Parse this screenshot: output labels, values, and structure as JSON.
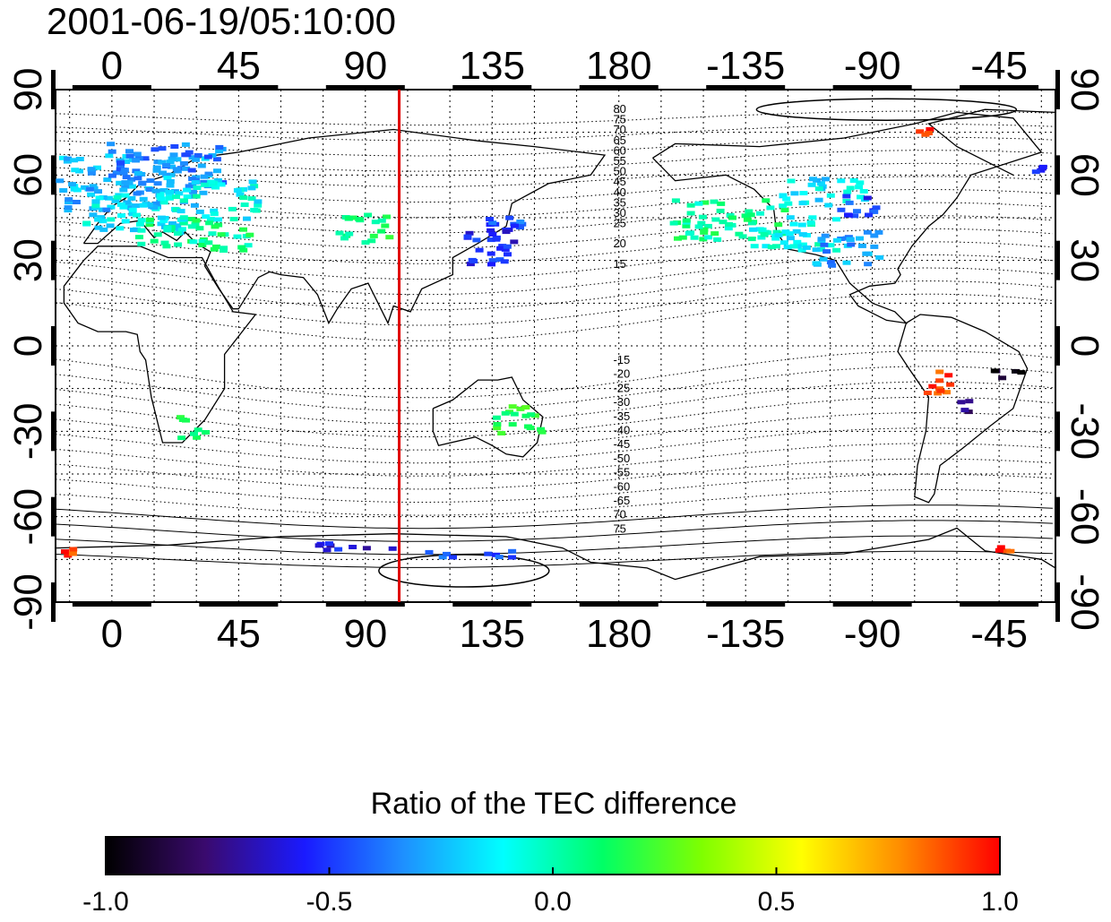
{
  "timestamp": "2001-06-19/05:10:00",
  "x_ticks": [
    0,
    45,
    90,
    135,
    180,
    -135,
    -90,
    -45
  ],
  "y_ticks": [
    90,
    60,
    30,
    0,
    -30,
    -60,
    -90
  ],
  "x_tick_labels": [
    "0",
    "45",
    "90",
    "135",
    "180",
    "-135",
    "-90",
    "-45"
  ],
  "y_tick_labels": [
    "90",
    "60",
    "30",
    "0",
    "-30",
    "-60",
    "-90"
  ],
  "map_extent": {
    "lon_start": -20,
    "lon_end": 335,
    "lat_top": 90,
    "lat_bottom": -90
  },
  "meridian_marker": {
    "lon": 102,
    "color": "#e00000"
  },
  "contour_labels_north": [
    "80",
    "75",
    "70",
    "65",
    "60",
    "55",
    "50",
    "45",
    "40",
    "35",
    "30",
    "25",
    "20",
    "15"
  ],
  "contour_labels_south": [
    "-15",
    "-20",
    "-25",
    "-30",
    "-35",
    "-40",
    "-45",
    "-50",
    "-55",
    "-60",
    "-65",
    "70",
    "75"
  ],
  "colorbar": {
    "title": "Ratio of the TEC difference",
    "min": -1.0,
    "max": 1.0,
    "tick_labels": [
      "-1.0",
      "-0.5",
      "0.0",
      "0.5",
      "1.0"
    ],
    "stops": [
      "#000000",
      "#3a0a6e",
      "#1a1aff",
      "#1e90ff",
      "#00ffff",
      "#00ff66",
      "#7fff00",
      "#ffff00",
      "#ff8c00",
      "#ff0000"
    ]
  },
  "tec_patches": [
    {
      "lon": -5,
      "lat": 58,
      "w": 55,
      "h": 20,
      "v": -0.25
    },
    {
      "lon": 10,
      "lat": 65,
      "w": 40,
      "h": 14,
      "v": -0.35
    },
    {
      "lon": 0,
      "lat": 48,
      "w": 35,
      "h": 15,
      "v": -0.15
    },
    {
      "lon": 20,
      "lat": 40,
      "w": 40,
      "h": 12,
      "v": 0.05
    },
    {
      "lon": 30,
      "lat": 52,
      "w": 30,
      "h": 14,
      "v": -0.1
    },
    {
      "lon": 85,
      "lat": 42,
      "w": 20,
      "h": 10,
      "v": 0.1
    },
    {
      "lon": 130,
      "lat": 35,
      "w": 18,
      "h": 14,
      "v": -0.55
    },
    {
      "lon": 136,
      "lat": 42,
      "w": 12,
      "h": 10,
      "v": -0.45
    },
    {
      "lon": 210,
      "lat": 45,
      "w": 40,
      "h": 14,
      "v": 0.05
    },
    {
      "lon": 235,
      "lat": 40,
      "w": 30,
      "h": 12,
      "v": -0.1
    },
    {
      "lon": 255,
      "lat": 35,
      "w": 25,
      "h": 12,
      "v": -0.3
    },
    {
      "lon": 245,
      "lat": 55,
      "w": 30,
      "h": 10,
      "v": -0.15
    },
    {
      "lon": 262,
      "lat": 50,
      "w": 15,
      "h": 8,
      "v": -0.5
    },
    {
      "lon": 140,
      "lat": -25,
      "w": 18,
      "h": 10,
      "v": 0.15
    },
    {
      "lon": 25,
      "lat": -28,
      "w": 10,
      "h": 8,
      "v": 0.1
    },
    {
      "lon": 290,
      "lat": -12,
      "w": 12,
      "h": 8,
      "v": 0.9
    },
    {
      "lon": 300,
      "lat": -20,
      "w": 6,
      "h": 5,
      "v": -0.8
    },
    {
      "lon": 315,
      "lat": -8,
      "w": 10,
      "h": 5,
      "v": -0.95
    },
    {
      "lon": 315,
      "lat": -70,
      "w": 8,
      "h": 3,
      "v": 0.95
    },
    {
      "lon": -15,
      "lat": -72,
      "w": 12,
      "h": 3,
      "v": 0.95
    },
    {
      "lon": 80,
      "lat": -70,
      "w": 30,
      "h": 3,
      "v": -0.6
    },
    {
      "lon": 120,
      "lat": -72,
      "w": 30,
      "h": 3,
      "v": -0.45
    },
    {
      "lon": 285,
      "lat": 76,
      "w": 8,
      "h": 2,
      "v": 0.95
    },
    {
      "lon": 325,
      "lat": 63,
      "w": 8,
      "h": 3,
      "v": -0.55
    }
  ]
}
